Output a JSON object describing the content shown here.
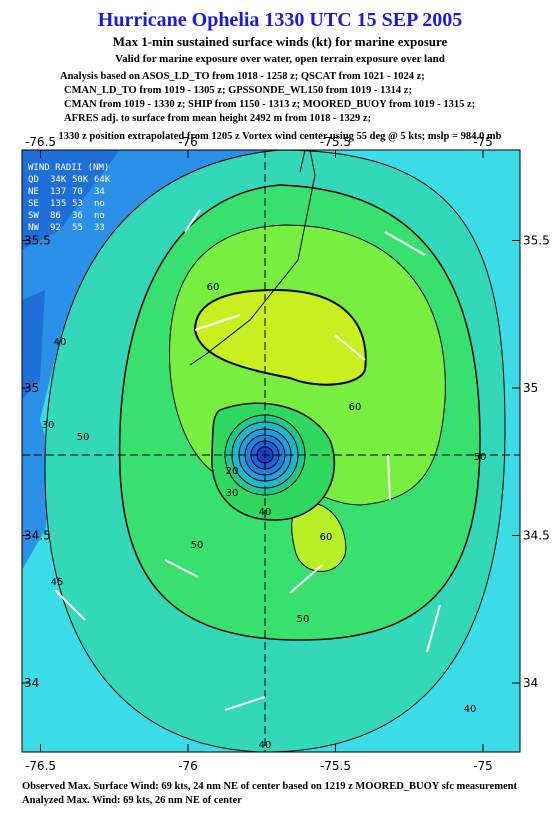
{
  "header": {
    "title": "Hurricane Ophelia 1330 UTC 15 SEP 2005",
    "subtitle": "Max 1-min sustained surface winds (kt) for marine exposure",
    "note": "Valid for marine exposure over water, open terrain exposure over land",
    "analysis": [
      "Analysis based on  ASOS_LD_TO from 1018 - 1258 z;  QSCAT from 1021 - 1024 z;",
      "CMAN_LD_TO from 1019 - 1305 z;  GPSSONDE_WL150 from 1019 - 1314 z;",
      "CMAN from 1019 - 1330 z;  SHIP from 1150 - 1313 z;  MOORED_BUOY from 1019 - 1315 z;",
      "AFRES adj. to surface from mean height 2492 m from 1018 - 1329 z;"
    ],
    "position": "1330 z position extrapolated from 1205 z Vortex wind center using 55 deg @ 5 kts; mslp = 984.0 mb"
  },
  "map": {
    "lon_ticks": [
      -76.5,
      -76.0,
      -75.5,
      -75.0
    ],
    "lat_ticks": [
      35.5,
      35.0,
      34.5,
      34.0
    ],
    "wind_radii": {
      "title": "WIND RADII (NM)",
      "rows": [
        [
          "QD",
          "34K",
          "50K",
          "64K"
        ],
        [
          "NE",
          "137",
          "70",
          "34"
        ],
        [
          "SE",
          "135",
          "53",
          "no"
        ],
        [
          "SW",
          "86",
          "36",
          "no"
        ],
        [
          "NW",
          "92",
          "55",
          "33"
        ]
      ]
    },
    "contour_labels": [
      60,
      60,
      50,
      50,
      50,
      50,
      40,
      40,
      45,
      40,
      30,
      20,
      30,
      40,
      60
    ]
  },
  "footer": {
    "observed": "Observed Max. Surface Wind: 69 kts, 24 nm NE of center based on 1219 z MOORED_BUOY sfc measurement",
    "analyzed": "Analyzed Max. Wind: 69 kts, 26 nm NE of center"
  }
}
